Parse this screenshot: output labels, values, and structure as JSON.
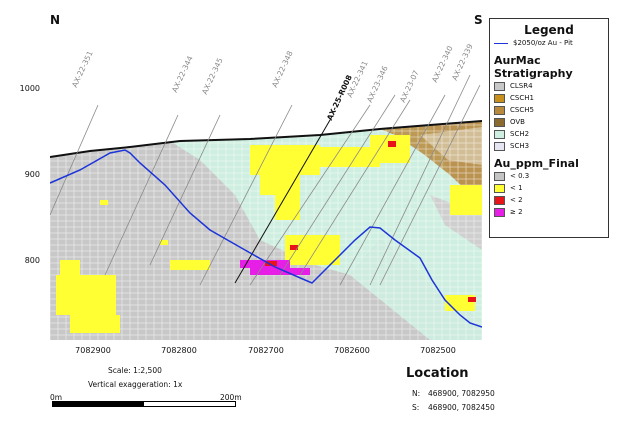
{
  "section": {
    "left_dir": "N",
    "right_dir": "S",
    "y_ticks": [
      "1000",
      "900",
      "800"
    ],
    "x_ticks": [
      "7082900",
      "7082800",
      "7082700",
      "7082600",
      "7082500"
    ]
  },
  "drillholes": {
    "highlight": "AX-25-R008",
    "labels": [
      "AX-22-351",
      "AX-22-344",
      "AX-22-345",
      "AX-22-348",
      "AX-22-341",
      "AX-23-346",
      "AX-23-07",
      "AX-22-340",
      "AX-22-339"
    ]
  },
  "legend": {
    "title": "Legend",
    "pit": {
      "label": "$2050/oz Au - Pit",
      "color": "#1c34d8"
    },
    "strat_title": "AurMac Stratigraphy",
    "strat": [
      {
        "label": "CLSR4",
        "color": "#c8c8c8"
      },
      {
        "label": "CSCH1",
        "color": "#c8901a"
      },
      {
        "label": "CSCH5",
        "color": "#b98a3c"
      },
      {
        "label": "OVB",
        "color": "#8a6a2e"
      },
      {
        "label": "SCH2",
        "color": "#cdeee0"
      },
      {
        "label": "SCH3",
        "color": "#e6e6f2"
      }
    ],
    "au_title": "Au_ppm_Final",
    "au": [
      {
        "label": "< 0.3",
        "color": "#c4c4c4"
      },
      {
        "label": "< 1",
        "color": "#ffff33"
      },
      {
        "label": "< 2",
        "color": "#e8141a"
      },
      {
        "label": "≥ 2",
        "color": "#e61ee6"
      }
    ]
  },
  "scale": {
    "label": "Scale: 1:2,500",
    "vexag": "Vertical exaggeration: 1x",
    "start": "0m",
    "end": "200m"
  },
  "location": {
    "title": "Location",
    "n_label": "N:",
    "n_value": "468900, 7082950",
    "s_label": "S:",
    "s_value": "468900, 7082450"
  }
}
